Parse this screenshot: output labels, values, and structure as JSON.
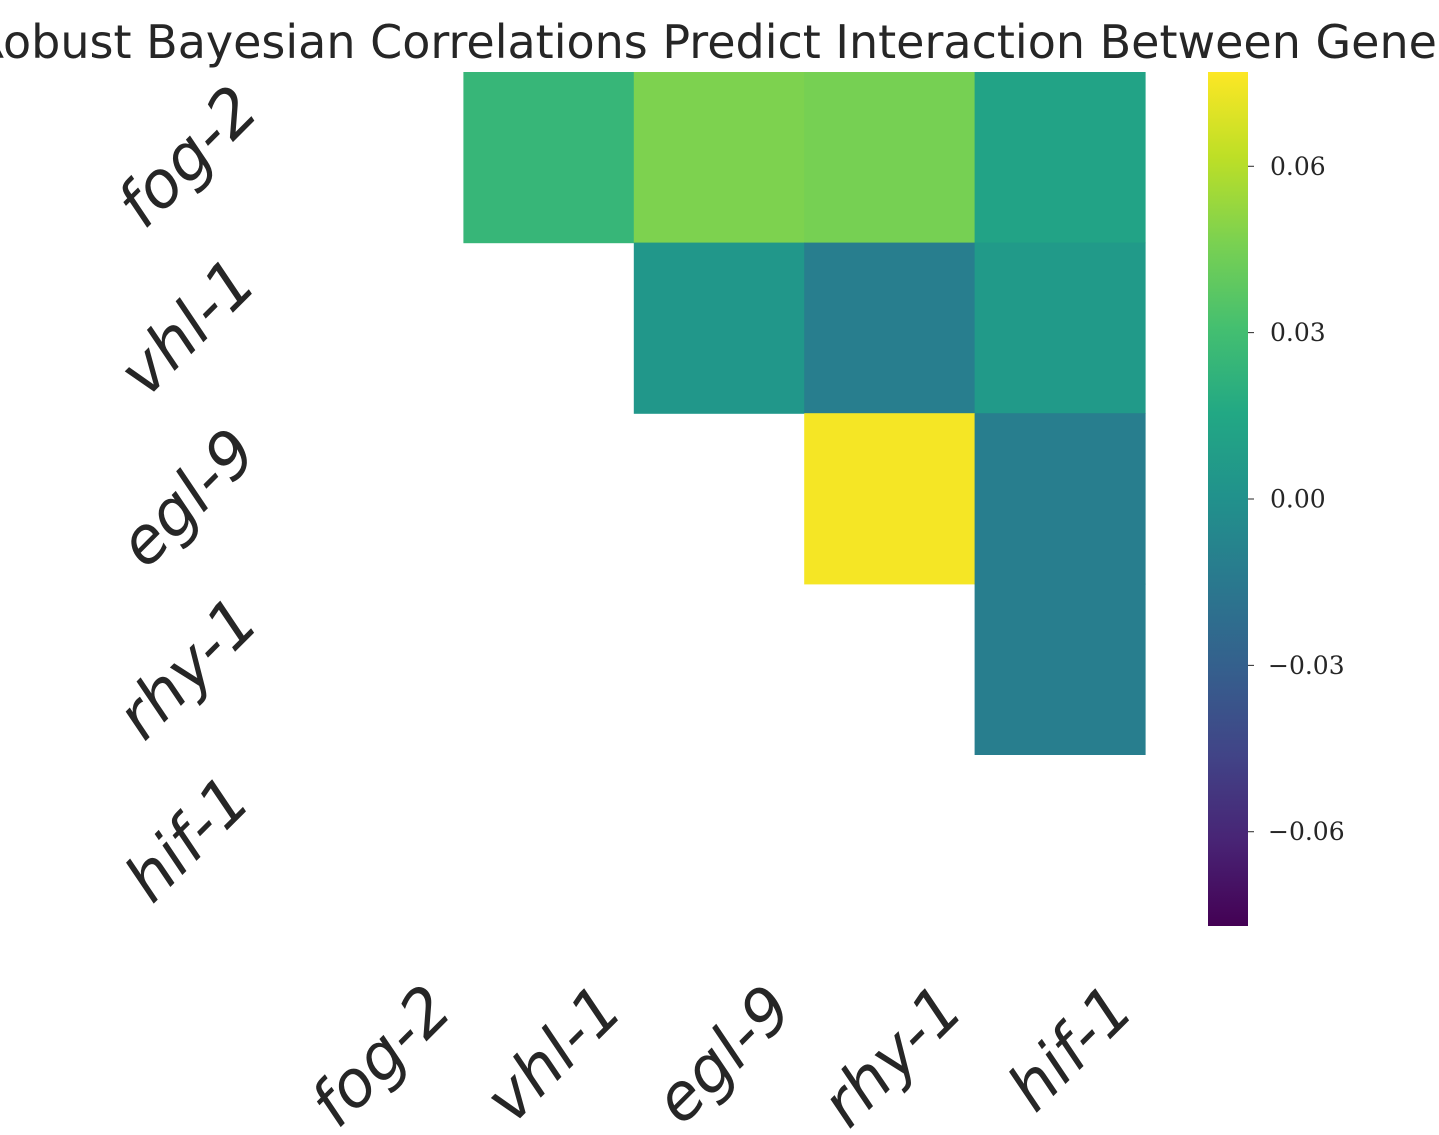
{
  "chart_data": {
    "type": "heatmap",
    "title": "Robust Bayesian Correlations Predict Interaction Between Genes",
    "row_labels": [
      "fog-2",
      "vhl-1",
      "egl-9",
      "rhy-1",
      "hif-1"
    ],
    "col_labels": [
      "fog-2",
      "vhl-1",
      "egl-9",
      "rhy-1",
      "hif-1"
    ],
    "mask": "lower-triangle-including-diagonal",
    "values": [
      [
        null,
        0.025,
        0.047,
        0.045,
        0.012
      ],
      [
        null,
        null,
        0.004,
        -0.012,
        0.006
      ],
      [
        null,
        null,
        null,
        0.075,
        -0.012
      ],
      [
        null,
        null,
        null,
        null,
        -0.012
      ],
      [
        null,
        null,
        null,
        null,
        null
      ]
    ],
    "colorscale": "viridis",
    "vmin": -0.077,
    "vmax": 0.077,
    "colorbar_ticks": [
      {
        "value": 0.06,
        "label": "0.06"
      },
      {
        "value": 0.03,
        "label": "0.03"
      },
      {
        "value": 0.0,
        "label": "0.00"
      },
      {
        "value": -0.03,
        "label": "−0.03"
      },
      {
        "value": -0.06,
        "label": "−0.06"
      }
    ],
    "colorbar_position": "right"
  }
}
